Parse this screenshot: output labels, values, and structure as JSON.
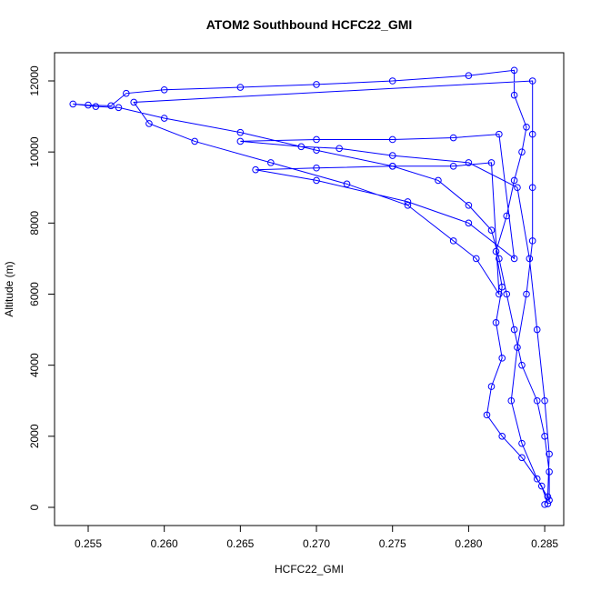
{
  "chart_data": {
    "type": "scatter",
    "title": "ATOM2 Southbound HCFC22_GMI",
    "x_label": "HCFC22_GMI",
    "y_label": "Altitude (m)",
    "color": "#0000ff",
    "connect": true,
    "xlim": [
      0.25279,
      0.28625
    ],
    "ylim": [
      -512,
      12793
    ],
    "xticks": [
      0.255,
      {
        "value": 0.26,
        "label": "0.260"
      },
      0.265,
      {
        "value": 0.27,
        "label": "0.270"
      },
      0.275,
      {
        "value": 0.28,
        "label": "0.280"
      },
      0.285
    ],
    "yticks": [
      0,
      2000,
      4000,
      6000,
      8000,
      10000,
      12000
    ],
    "x": [
      0.2852,
      0.2848,
      0.2835,
      0.2822,
      0.2812,
      0.2815,
      0.2822,
      0.2818,
      0.2822,
      0.2818,
      0.2825,
      0.283,
      0.2835,
      0.2838,
      0.283,
      0.283,
      0.28,
      0.275,
      0.27,
      0.265,
      0.26,
      0.2575,
      0.2565,
      0.255,
      0.254,
      0.2555,
      0.257,
      0.26,
      0.265,
      0.27,
      0.275,
      0.278,
      0.28,
      0.2815,
      0.282,
      0.2825,
      0.283,
      0.2835,
      0.2845,
      0.285,
      0.2853,
      0.2853,
      0.2845,
      0.2835,
      0.2828,
      0.2832,
      0.2838,
      0.2842,
      0.2842,
      0.2842,
      0.2842,
      0.258,
      0.259,
      0.262,
      0.267,
      0.272,
      0.276,
      0.279,
      0.2805,
      0.282,
      0.2815,
      0.279,
      0.275,
      0.27,
      0.266,
      0.27,
      0.276,
      0.28,
      0.283,
      0.282,
      0.279,
      0.275,
      0.27,
      0.265,
      0.269,
      0.2715,
      0.275,
      0.28,
      0.2832,
      0.284,
      0.2845,
      0.285,
      0.2853,
      0.2852,
      0.285
    ],
    "y": [
      100,
      600,
      1400,
      2000,
      2600,
      3400,
      4200,
      5200,
      6200,
      7200,
      8200,
      9200,
      10000,
      10700,
      11600,
      12300,
      12150,
      12000,
      11900,
      11820,
      11750,
      11650,
      11300,
      11320,
      11350,
      11280,
      11250,
      10950,
      10550,
      10050,
      9600,
      9200,
      8500,
      7800,
      7000,
      6000,
      5000,
      4000,
      3000,
      2000,
      1000,
      200,
      800,
      1800,
      3000,
      4500,
      6000,
      7500,
      9000,
      10500,
      12000,
      11400,
      10800,
      10300,
      9700,
      9100,
      8500,
      7500,
      7000,
      6000,
      9700,
      9600,
      9600,
      9550,
      9500,
      9200,
      8600,
      8000,
      7000,
      10500,
      10400,
      10350,
      10350,
      10300,
      10150,
      10100,
      9900,
      9700,
      9000,
      7000,
      5000,
      3000,
      1500,
      300,
      80
    ]
  }
}
